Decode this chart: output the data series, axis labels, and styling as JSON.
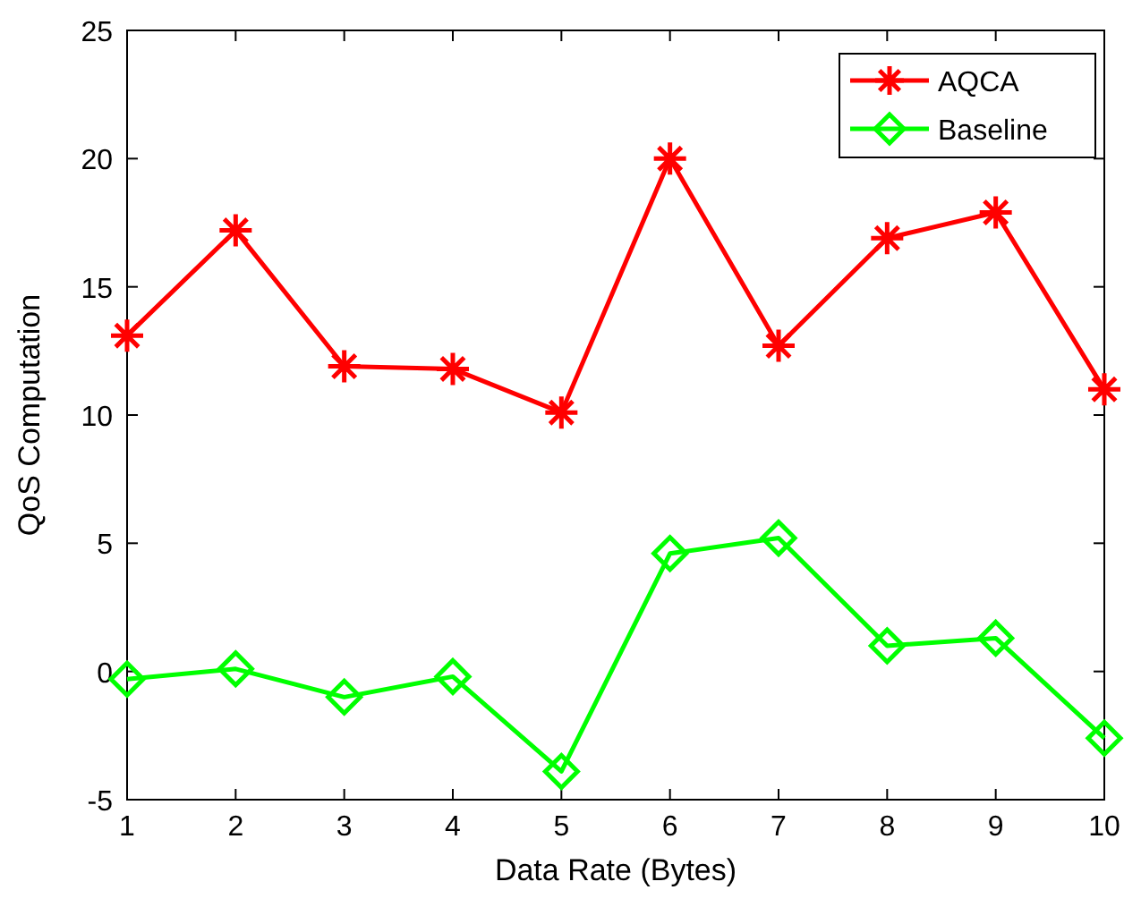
{
  "chart_data": {
    "type": "line",
    "xlabel": "Data Rate (Bytes)",
    "ylabel": "QoS Computation",
    "x": [
      1,
      2,
      3,
      4,
      5,
      6,
      7,
      8,
      9,
      10
    ],
    "series": [
      {
        "name": "AQCA",
        "color": "#ff0000",
        "marker": "cross",
        "values": [
          13.1,
          17.2,
          11.9,
          11.8,
          10.1,
          20.0,
          12.7,
          16.9,
          17.9,
          11.0
        ]
      },
      {
        "name": "Baseline",
        "color": "#00ff00",
        "marker": "diamond",
        "values": [
          -0.3,
          0.1,
          -1.0,
          -0.2,
          -3.9,
          4.6,
          5.2,
          1.0,
          1.3,
          -2.6
        ]
      }
    ],
    "xlim": [
      1,
      10
    ],
    "xticks": [
      1,
      2,
      3,
      4,
      5,
      6,
      7,
      8,
      9,
      10
    ],
    "ylim": [
      -5,
      25
    ],
    "yticks": [
      -5,
      0,
      5,
      10,
      15,
      20,
      25
    ],
    "grid": false,
    "legend": "top right",
    "line_style": "solid"
  }
}
